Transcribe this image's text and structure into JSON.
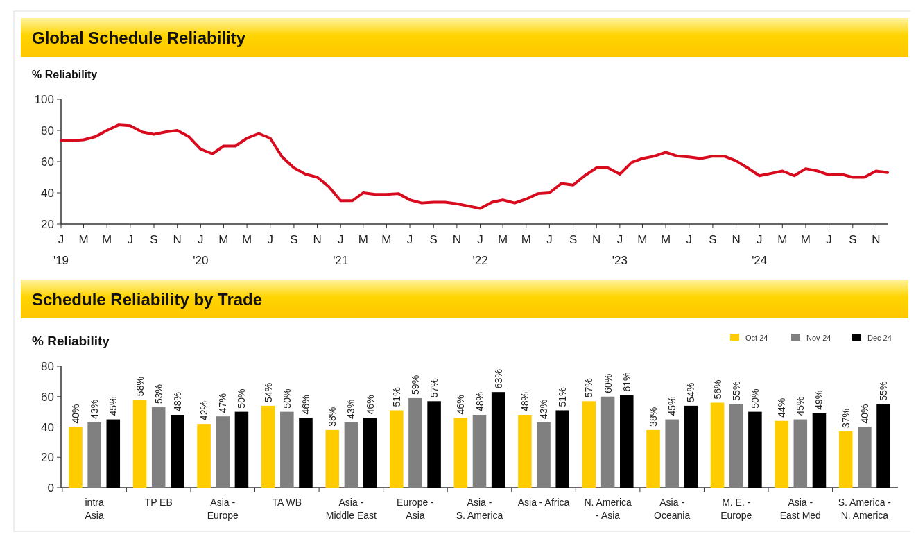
{
  "chart_data": [
    {
      "type": "line",
      "title": "Global Schedule Reliability",
      "ylabel": "% Reliability",
      "x": [
        "2019-01",
        "2019-02",
        "2019-03",
        "2019-04",
        "2019-05",
        "2019-06",
        "2019-07",
        "2019-08",
        "2019-09",
        "2019-10",
        "2019-11",
        "2019-12",
        "2020-01",
        "2020-02",
        "2020-03",
        "2020-04",
        "2020-05",
        "2020-06",
        "2020-07",
        "2020-08",
        "2020-09",
        "2020-10",
        "2020-11",
        "2020-12",
        "2021-01",
        "2021-02",
        "2021-03",
        "2021-04",
        "2021-05",
        "2021-06",
        "2021-07",
        "2021-08",
        "2021-09",
        "2021-10",
        "2021-11",
        "2021-12",
        "2022-01",
        "2022-02",
        "2022-03",
        "2022-04",
        "2022-05",
        "2022-06",
        "2022-07",
        "2022-08",
        "2022-09",
        "2022-10",
        "2022-11",
        "2022-12",
        "2023-01",
        "2023-02",
        "2023-03",
        "2023-04",
        "2023-05",
        "2023-06",
        "2023-07",
        "2023-08",
        "2023-09",
        "2023-10",
        "2023-11",
        "2023-12",
        "2024-01",
        "2024-02",
        "2024-03",
        "2024-04",
        "2024-05",
        "2024-06",
        "2024-07",
        "2024-08",
        "2024-09",
        "2024-10",
        "2024-11",
        "2024-12"
      ],
      "series": [
        {
          "color": "#d70a1e",
          "values": [
            73.5,
            73.5,
            74,
            76,
            80,
            83.5,
            83,
            79,
            77.5,
            79,
            80,
            76,
            68,
            65,
            70,
            70,
            75,
            78,
            75,
            63,
            56,
            52,
            50,
            44,
            35,
            35,
            40,
            39,
            39,
            39.5,
            35.5,
            33.5,
            34,
            34,
            33,
            31.5,
            30,
            34,
            35.5,
            33.5,
            36,
            39.5,
            40,
            46,
            45,
            51,
            56,
            56,
            52,
            59.5,
            62,
            63.5,
            66,
            63.5,
            63,
            62,
            63.5,
            63.5,
            60.5,
            56,
            51,
            52.5,
            54,
            51,
            55.5,
            54,
            51.5,
            52,
            50,
            50,
            54,
            53
          ]
        }
      ],
      "xlim": [
        "2019-01",
        "2024-12"
      ],
      "ylim": [
        20,
        100
      ],
      "yticks": [
        20,
        40,
        60,
        80,
        100
      ],
      "xticks": [
        {
          "value": "2019-01",
          "label": "J\n'19"
        },
        {
          "value": "2019-03",
          "label": "M"
        },
        {
          "value": "2019-05",
          "label": "M"
        },
        {
          "value": "2019-07",
          "label": "J"
        },
        {
          "value": "2019-09",
          "label": "S"
        },
        {
          "value": "2019-11",
          "label": "N"
        },
        {
          "value": "2020-01",
          "label": "J\n'20"
        },
        {
          "value": "2020-03",
          "label": "M"
        },
        {
          "value": "2020-05",
          "label": "M"
        },
        {
          "value": "2020-07",
          "label": "J"
        },
        {
          "value": "2020-09",
          "label": "S"
        },
        {
          "value": "2020-11",
          "label": "N"
        },
        {
          "value": "2021-01",
          "label": "J\n'21"
        },
        {
          "value": "2021-03",
          "label": "M"
        },
        {
          "value": "2021-05",
          "label": "M"
        },
        {
          "value": "2021-07",
          "label": "J"
        },
        {
          "value": "2021-09",
          "label": "S"
        },
        {
          "value": "2021-11",
          "label": "N"
        },
        {
          "value": "2022-01",
          "label": "J\n'22"
        },
        {
          "value": "2022-03",
          "label": "M"
        },
        {
          "value": "2022-05",
          "label": "M"
        },
        {
          "value": "2022-07",
          "label": "J"
        },
        {
          "value": "2022-09",
          "label": "S"
        },
        {
          "value": "2022-11",
          "label": "N"
        },
        {
          "value": "2023-01",
          "label": "J\n'23"
        },
        {
          "value": "2023-03",
          "label": "M"
        },
        {
          "value": "2023-05",
          "label": "M"
        },
        {
          "value": "2023-07",
          "label": "J"
        },
        {
          "value": "2023-09",
          "label": "S"
        },
        {
          "value": "2023-11",
          "label": "N"
        },
        {
          "value": "2024-01",
          "label": "J\n'24"
        },
        {
          "value": "2024-03",
          "label": "M"
        },
        {
          "value": "2024-05",
          "label": "M"
        },
        {
          "value": "2024-07",
          "label": "J"
        },
        {
          "value": "2024-09",
          "label": "S"
        },
        {
          "value": "2024-11",
          "label": "N"
        }
      ]
    },
    {
      "type": "bar",
      "title": "Schedule Reliability by Trade",
      "ylabel": "% Reliability",
      "categories": [
        "intra\nAsia",
        "TP EB",
        "Asia -\nEurope",
        "TA WB",
        "Asia -\nMiddle East",
        "Europe -\nAsia",
        "Asia -\nS. America",
        "Asia - Africa",
        "N. America\n- Asia",
        "Asia -\nOceania",
        "M. E. -\nEurope",
        "Asia -\nEast Med",
        "S. America -\nN. America"
      ],
      "series": [
        {
          "name": "Oct 24",
          "color": "#ffcc00",
          "values": [
            40,
            58,
            42,
            54,
            38,
            51,
            46,
            48,
            57,
            38,
            56,
            44,
            37
          ],
          "value_labels": [
            "40%",
            "58%",
            "42%",
            "54%",
            "38%",
            "51%",
            "46%",
            "48%",
            "57%",
            "38%",
            "56%",
            "44%",
            "37%"
          ]
        },
        {
          "name": "Nov-24",
          "color": "#808080",
          "values": [
            43,
            53,
            47,
            50,
            43,
            59,
            48,
            43,
            60,
            45,
            55,
            45,
            40
          ],
          "value_labels": [
            "43%",
            "53%",
            "47%",
            "50%",
            "43%",
            "59%",
            "48%",
            "43%",
            "60%",
            "45%",
            "55%",
            "45%",
            "40%"
          ]
        },
        {
          "name": "Dec 24",
          "color": "#000000",
          "values": [
            45,
            48,
            50,
            46,
            46,
            57,
            63,
            51,
            61,
            54,
            50,
            49,
            55
          ],
          "value_labels": [
            "45%",
            "48%",
            "50%",
            "46%",
            "46%",
            "57%",
            "63%",
            "51%",
            "61%",
            "54%",
            "50%",
            "49%",
            "55%"
          ]
        }
      ],
      "ylim": [
        0,
        80
      ],
      "yticks": [
        0,
        20,
        40,
        60,
        80
      ],
      "legend": "top right"
    }
  ]
}
